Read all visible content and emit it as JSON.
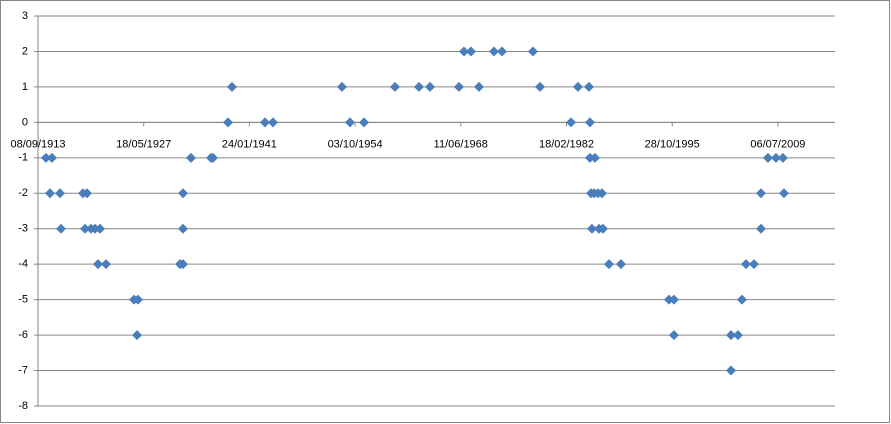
{
  "chart_data": {
    "type": "scatter",
    "x": [
      5378,
      5662,
      5568,
      6041,
      6088,
      7129,
      7318,
      7223,
      7507,
      7696,
      7933,
      7838,
      8216,
      9541,
      9730,
      9683,
      11717,
      11859,
      11859,
      11859,
      12237,
      13183,
      13278,
      13987,
      14176,
      15737,
      16116,
      19379,
      19758,
      20420,
      21886,
      23021,
      23542,
      24913,
      25150,
      25481,
      25860,
      26569,
      26948,
      28414,
      28745,
      30211,
      30542,
      31062,
      31110,
      31110,
      31346,
      31157,
      31299,
      31488,
      31677,
      31204,
      31535,
      31725,
      32008,
      32576,
      34846,
      35083,
      35083,
      37779,
      37779,
      38110,
      38299,
      38488,
      38867,
      39198,
      39198,
      39529,
      39907,
      40238,
      40285
    ],
    "values": [
      -1,
      -1,
      -2,
      -2,
      -3,
      -2,
      -2,
      -3,
      -3,
      -3,
      -3,
      -4,
      -4,
      -5,
      -5,
      -6,
      -4,
      -4,
      -2,
      -3,
      -1,
      -1,
      -1,
      0,
      1,
      0,
      0,
      1,
      0,
      0,
      1,
      1,
      1,
      1,
      2,
      2,
      1,
      2,
      2,
      2,
      1,
      0,
      1,
      1,
      0,
      -1,
      -1,
      -2,
      -2,
      -2,
      -2,
      -3,
      -3,
      -3,
      -4,
      -4,
      -5,
      -5,
      -6,
      -7,
      -6,
      -6,
      -5,
      -4,
      -4,
      -3,
      -2,
      -1,
      -1,
      -1,
      -2
    ],
    "color": "#4a7ebb",
    "xlim": [
      5000,
      42700
    ],
    "xticks": [
      {
        "value": 5000,
        "label": "08/09/1913"
      },
      {
        "value": 10000,
        "label": "18/05/1927"
      },
      {
        "value": 15000,
        "label": "24/01/1941"
      },
      {
        "value": 20000,
        "label": "03/10/1954"
      },
      {
        "value": 25000,
        "label": "11/06/1968"
      },
      {
        "value": 30000,
        "label": "18/02/1982"
      },
      {
        "value": 35000,
        "label": "28/10/1995"
      },
      {
        "value": 40000,
        "label": "06/07/2009"
      }
    ],
    "ylim": [
      -8,
      3
    ],
    "yticks": [
      -8,
      -7,
      -6,
      -5,
      -4,
      -3,
      -2,
      -1,
      0,
      1,
      2,
      3
    ],
    "grid": true
  }
}
